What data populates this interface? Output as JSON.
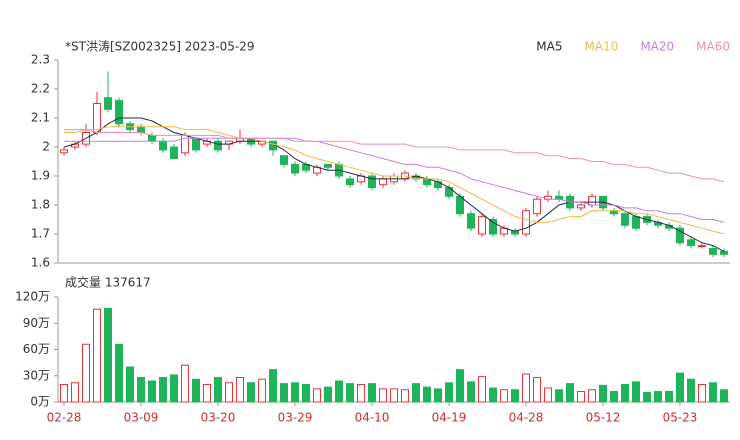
{
  "chart_data": [
    {
      "type": "candlestick",
      "title": "*ST洪涛[SZ002325] 2023-05-29",
      "up_color": "#e8323c",
      "down_color": "#1fb45a",
      "ylim": [
        1.6,
        2.3
      ],
      "yticks": [
        2.3,
        2.2,
        2.1,
        2,
        1.9,
        1.8,
        1.7,
        1.6
      ],
      "open": [
        1.98,
        2.0,
        2.01,
        2.05,
        2.17,
        2.16,
        2.08,
        2.07,
        2.04,
        2.02,
        2.0,
        1.98,
        2.03,
        2.01,
        2.02,
        2.01,
        2.02,
        2.03,
        2.01,
        2.02,
        1.97,
        1.94,
        1.94,
        1.91,
        1.94,
        1.94,
        1.89,
        1.88,
        1.9,
        1.87,
        1.88,
        1.89,
        1.9,
        1.89,
        1.88,
        1.86,
        1.83,
        1.77,
        1.7,
        1.75,
        1.7,
        1.71,
        1.7,
        1.77,
        1.82,
        1.83,
        1.83,
        1.79,
        1.8,
        1.83,
        1.78,
        1.77,
        1.76,
        1.76,
        1.74,
        1.73,
        1.72,
        1.68,
        1.66,
        1.65,
        1.64
      ],
      "high": [
        2.0,
        2.02,
        2.08,
        2.19,
        2.26,
        2.17,
        2.09,
        2.08,
        2.05,
        2.03,
        2.01,
        2.05,
        2.03,
        2.03,
        2.03,
        2.02,
        2.06,
        2.03,
        2.02,
        2.02,
        1.97,
        1.95,
        1.95,
        1.94,
        1.94,
        1.95,
        1.9,
        1.91,
        1.91,
        1.9,
        1.91,
        1.92,
        1.91,
        1.9,
        1.89,
        1.87,
        1.84,
        1.78,
        1.77,
        1.76,
        1.73,
        1.72,
        1.79,
        1.83,
        1.85,
        1.85,
        1.84,
        1.81,
        1.84,
        1.83,
        1.79,
        1.78,
        1.77,
        1.77,
        1.75,
        1.74,
        1.73,
        1.69,
        1.67,
        1.66,
        1.65
      ],
      "low": [
        1.97,
        1.99,
        2.0,
        2.04,
        2.12,
        2.07,
        2.05,
        2.04,
        2.01,
        1.98,
        1.96,
        1.97,
        1.98,
        2.0,
        1.98,
        1.99,
        2.01,
        2.0,
        2.0,
        1.97,
        1.93,
        1.9,
        1.91,
        1.9,
        1.92,
        1.89,
        1.86,
        1.87,
        1.85,
        1.86,
        1.87,
        1.88,
        1.88,
        1.86,
        1.85,
        1.82,
        1.76,
        1.71,
        1.69,
        1.69,
        1.69,
        1.69,
        1.69,
        1.76,
        1.81,
        1.81,
        1.78,
        1.78,
        1.79,
        1.78,
        1.76,
        1.72,
        1.71,
        1.73,
        1.72,
        1.71,
        1.66,
        1.65,
        1.65,
        1.62,
        1.62
      ],
      "close": [
        1.99,
        2.01,
        2.05,
        2.15,
        2.13,
        2.08,
        2.06,
        2.05,
        2.02,
        1.99,
        1.96,
        2.04,
        1.99,
        2.02,
        1.99,
        2.02,
        2.03,
        2.01,
        2.02,
        1.99,
        1.94,
        1.91,
        1.92,
        1.93,
        1.93,
        1.9,
        1.87,
        1.9,
        1.86,
        1.89,
        1.9,
        1.91,
        1.89,
        1.87,
        1.86,
        1.83,
        1.77,
        1.72,
        1.76,
        1.7,
        1.72,
        1.7,
        1.78,
        1.82,
        1.83,
        1.82,
        1.79,
        1.8,
        1.83,
        1.79,
        1.77,
        1.73,
        1.72,
        1.74,
        1.73,
        1.72,
        1.67,
        1.66,
        1.66,
        1.63,
        1.63
      ],
      "series": [
        {
          "name": "MA5",
          "color": "#2b2b3a",
          "values": [
            2.0,
            2.01,
            2.03,
            2.05,
            2.08,
            2.1,
            2.1,
            2.1,
            2.09,
            2.07,
            2.05,
            2.04,
            2.03,
            2.02,
            2.01,
            2.01,
            2.02,
            2.02,
            2.02,
            2.01,
            1.99,
            1.96,
            1.94,
            1.93,
            1.92,
            1.92,
            1.91,
            1.9,
            1.89,
            1.89,
            1.89,
            1.89,
            1.9,
            1.89,
            1.88,
            1.86,
            1.83,
            1.8,
            1.77,
            1.74,
            1.72,
            1.71,
            1.72,
            1.74,
            1.77,
            1.8,
            1.81,
            1.81,
            1.81,
            1.81,
            1.8,
            1.78,
            1.76,
            1.75,
            1.74,
            1.73,
            1.71,
            1.69,
            1.67,
            1.66,
            1.64
          ]
        },
        {
          "name": "MA10",
          "color": "#f3b94a",
          "values": [
            2.05,
            2.05,
            2.06,
            2.06,
            2.07,
            2.07,
            2.07,
            2.07,
            2.07,
            2.07,
            2.07,
            2.06,
            2.06,
            2.06,
            2.05,
            2.04,
            2.03,
            2.03,
            2.02,
            2.01,
            2.0,
            1.99,
            1.97,
            1.96,
            1.95,
            1.94,
            1.93,
            1.92,
            1.91,
            1.9,
            1.9,
            1.9,
            1.89,
            1.89,
            1.89,
            1.88,
            1.86,
            1.84,
            1.82,
            1.8,
            1.78,
            1.76,
            1.75,
            1.74,
            1.74,
            1.75,
            1.76,
            1.76,
            1.78,
            1.78,
            1.78,
            1.78,
            1.77,
            1.77,
            1.76,
            1.75,
            1.74,
            1.73,
            1.72,
            1.71,
            1.7
          ]
        },
        {
          "name": "MA20",
          "color": "#c57ee0",
          "values": [
            2.02,
            2.02,
            2.02,
            2.02,
            2.02,
            2.02,
            2.02,
            2.02,
            2.02,
            2.02,
            2.02,
            2.03,
            2.03,
            2.03,
            2.03,
            2.03,
            2.03,
            2.03,
            2.03,
            2.03,
            2.03,
            2.03,
            2.02,
            2.02,
            2.01,
            2.0,
            1.99,
            1.98,
            1.97,
            1.96,
            1.95,
            1.94,
            1.94,
            1.93,
            1.93,
            1.92,
            1.91,
            1.89,
            1.88,
            1.87,
            1.86,
            1.85,
            1.84,
            1.83,
            1.82,
            1.82,
            1.81,
            1.81,
            1.8,
            1.8,
            1.8,
            1.79,
            1.79,
            1.78,
            1.78,
            1.77,
            1.77,
            1.76,
            1.75,
            1.75,
            1.74
          ]
        },
        {
          "name": "MA60",
          "color": "#ef8fb6",
          "values": [
            2.06,
            2.06,
            2.06,
            2.05,
            2.05,
            2.05,
            2.05,
            2.05,
            2.04,
            2.04,
            2.04,
            2.04,
            2.04,
            2.04,
            2.04,
            2.03,
            2.03,
            2.03,
            2.03,
            2.03,
            2.03,
            2.02,
            2.02,
            2.02,
            2.02,
            2.02,
            2.02,
            2.01,
            2.01,
            2.01,
            2.01,
            2.01,
            2.0,
            2.0,
            2.0,
            2.0,
            1.99,
            1.99,
            1.99,
            1.99,
            1.99,
            1.98,
            1.98,
            1.98,
            1.97,
            1.97,
            1.96,
            1.96,
            1.95,
            1.95,
            1.94,
            1.94,
            1.93,
            1.93,
            1.92,
            1.91,
            1.91,
            1.9,
            1.89,
            1.89,
            1.88
          ]
        }
      ]
    },
    {
      "type": "bar",
      "title": "成交量 137617",
      "ylim": [
        0,
        120
      ],
      "yticks": [
        {
          "value": 120,
          "label": "120万"
        },
        {
          "value": 90,
          "label": "90万"
        },
        {
          "value": 60,
          "label": "60万"
        },
        {
          "value": 30,
          "label": "30万"
        },
        {
          "value": 0,
          "label": "0万"
        }
      ],
      "categories": [
        "02-28",
        null,
        null,
        null,
        null,
        null,
        null,
        "03-09",
        null,
        null,
        null,
        null,
        null,
        null,
        "03-20",
        null,
        null,
        null,
        null,
        null,
        null,
        "03-29",
        null,
        null,
        null,
        null,
        null,
        null,
        "04-10",
        null,
        null,
        null,
        null,
        null,
        null,
        "04-19",
        null,
        null,
        null,
        null,
        null,
        null,
        "04-28",
        null,
        null,
        null,
        null,
        null,
        null,
        "05-12",
        null,
        null,
        null,
        null,
        null,
        null,
        "05-23",
        null,
        null,
        null,
        null
      ],
      "values": [
        20,
        22,
        66,
        106,
        107,
        66,
        40,
        28,
        24,
        28,
        31,
        42,
        26,
        20,
        28,
        22,
        28,
        22,
        26,
        37,
        21,
        22,
        20,
        15,
        17,
        24,
        21,
        20,
        21,
        15,
        15,
        14,
        21,
        17,
        15,
        22,
        37,
        23,
        29,
        16,
        14,
        14,
        32,
        28,
        16,
        14,
        21,
        12,
        14,
        19,
        12,
        20,
        23,
        11,
        12,
        12,
        33,
        26,
        20,
        22,
        14
      ]
    }
  ]
}
